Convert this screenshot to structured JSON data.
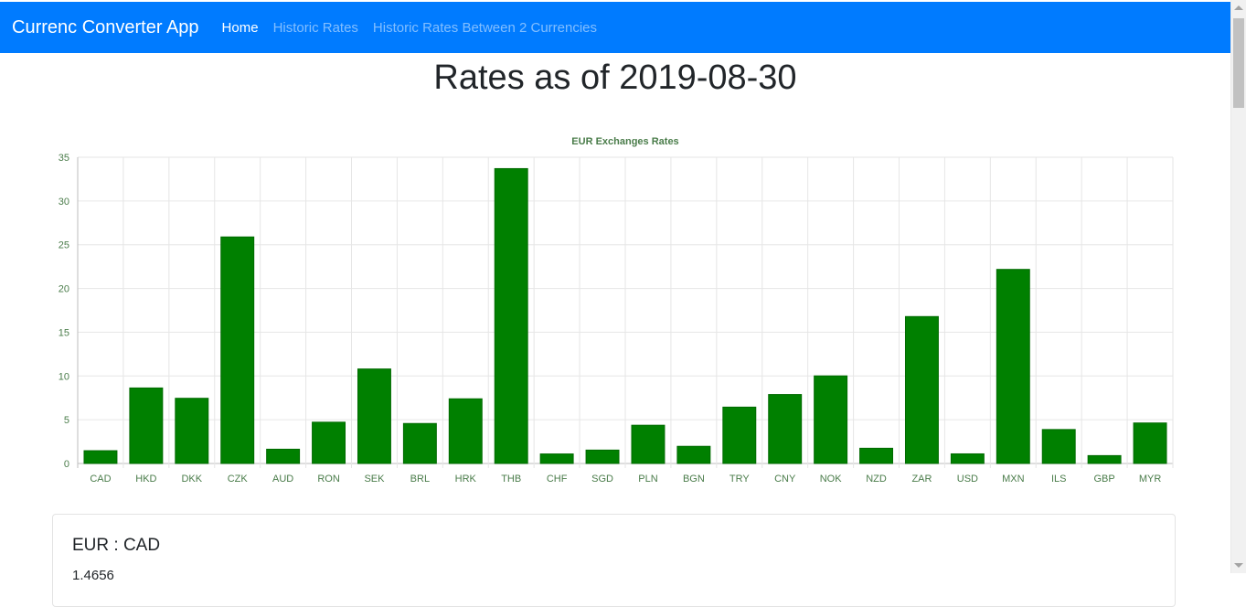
{
  "navbar": {
    "brand": "Currenc Converter App",
    "links": [
      {
        "label": "Home",
        "active": true
      },
      {
        "label": "Historic Rates",
        "active": false
      },
      {
        "label": "Historic Rates Between 2 Currencies",
        "active": false
      }
    ],
    "background": "#007bff"
  },
  "page_title": "Rates as of 2019-08-30",
  "chart_data": {
    "type": "bar",
    "title": "EUR Exchanges Rates",
    "categories": [
      "CAD",
      "HKD",
      "DKK",
      "CZK",
      "AUD",
      "RON",
      "SEK",
      "BRL",
      "HRK",
      "THB",
      "CHF",
      "SGD",
      "PLN",
      "BGN",
      "TRY",
      "CNY",
      "NOK",
      "NZD",
      "ZAR",
      "USD",
      "MXN",
      "ILS",
      "GBP",
      "MYR"
    ],
    "series": [
      {
        "values": [
          1.46,
          8.63,
          7.45,
          25.89,
          1.63,
          4.72,
          10.8,
          4.57,
          7.39,
          33.7,
          1.09,
          1.53,
          4.37,
          1.96,
          6.44,
          7.88,
          10.01,
          1.74,
          16.79,
          1.1,
          22.18,
          3.88,
          0.9,
          4.63
        ]
      }
    ],
    "ylim": [
      0,
      35
    ],
    "yticks": [
      0,
      5,
      10,
      15,
      20,
      25,
      30,
      35
    ],
    "grid": true,
    "bar_color": "#008000",
    "text_color": "#4a7c4a"
  },
  "card": {
    "title": "EUR : CAD",
    "value": "1.4656"
  },
  "scrollbar": {
    "thumb_position": 0.0
  }
}
